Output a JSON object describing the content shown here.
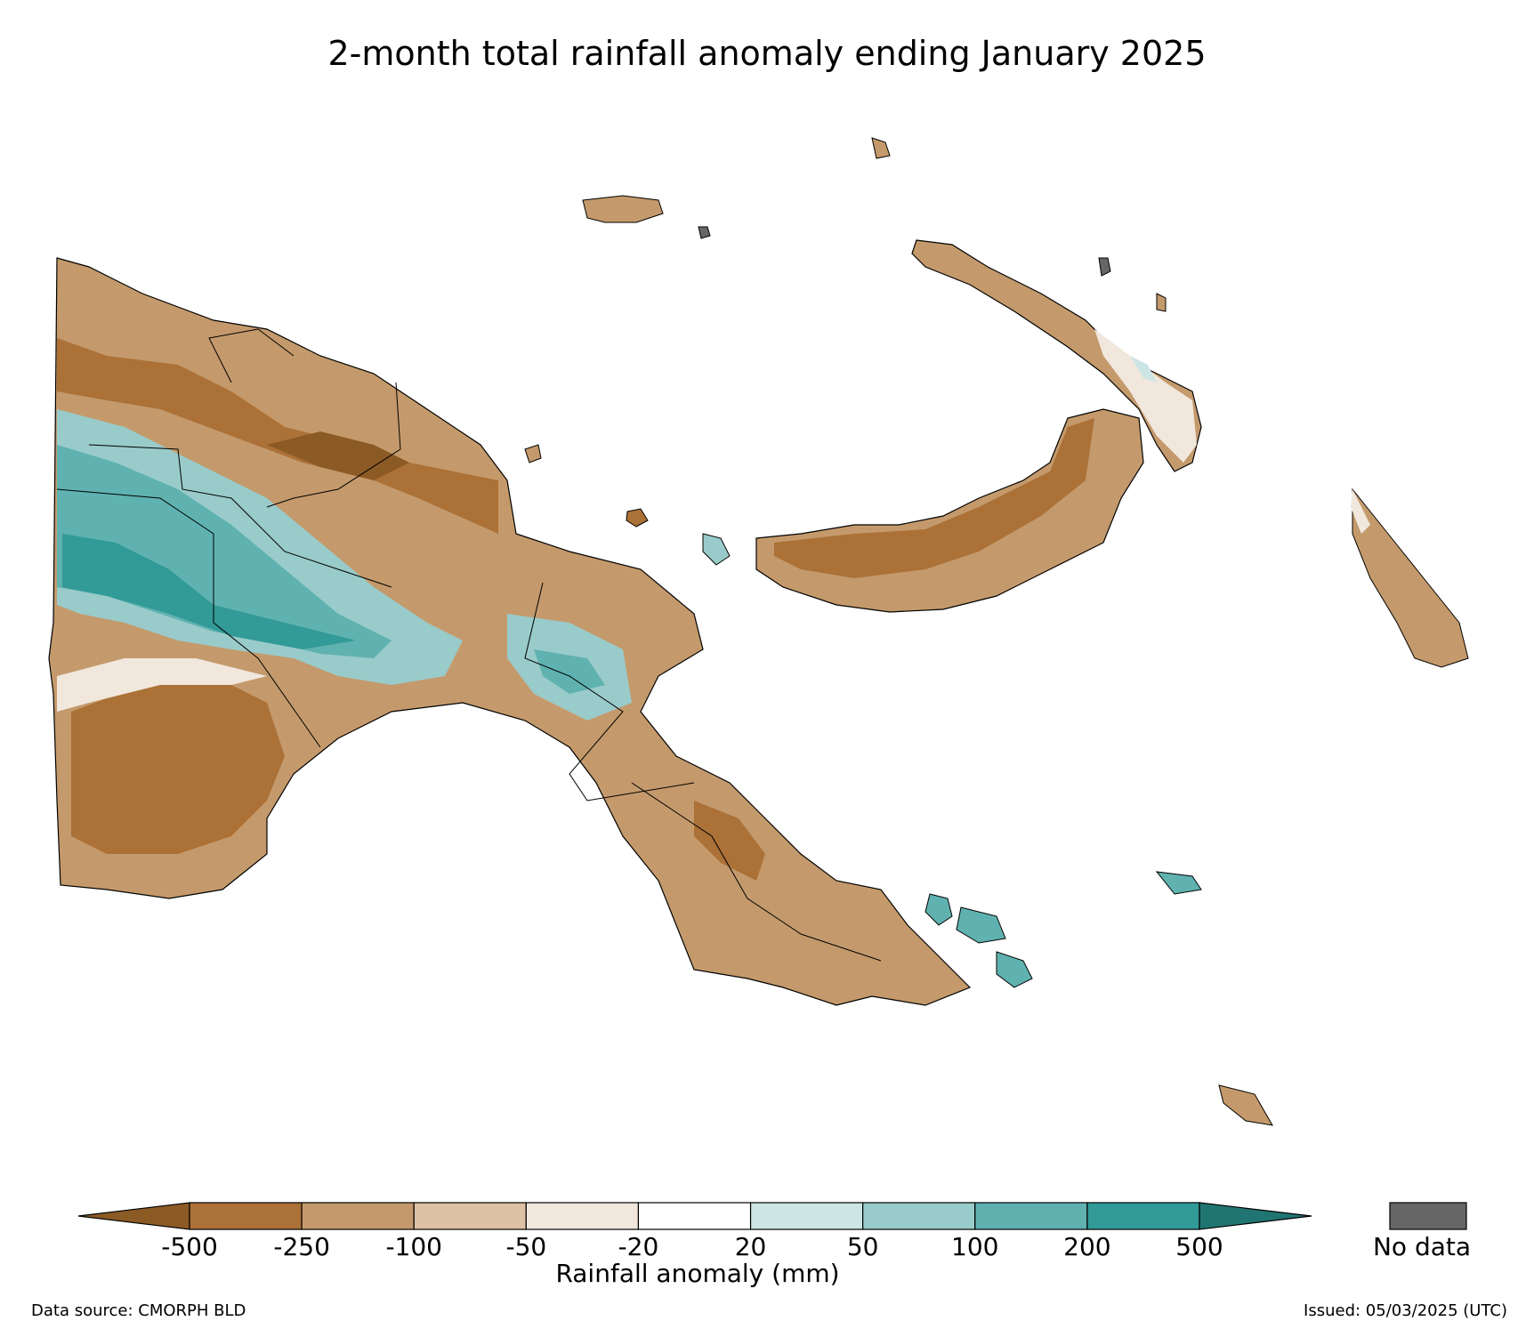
{
  "title": "2-month total rainfall anomaly ending January 2025",
  "colorbar": {
    "labels": [
      "-500",
      "-250",
      "-100",
      "-50",
      "-20",
      "20",
      "50",
      "100",
      "200",
      "500"
    ],
    "colors": [
      "#8c5a24",
      "#ab7137",
      "#c49a6c",
      "#dcc1a5",
      "#f1e7dd",
      "#ffffff",
      "#cde6e5",
      "#99cbca",
      "#5fb2b0",
      "#329a97",
      "#207572"
    ],
    "title": "Rainfall anomaly (mm)",
    "no_data_label": "No data",
    "no_data_color": "#666666"
  },
  "footer": {
    "source": "Data source: CMORPH BLD",
    "issued": "Issued: 05/03/2025 (UTC)"
  }
}
